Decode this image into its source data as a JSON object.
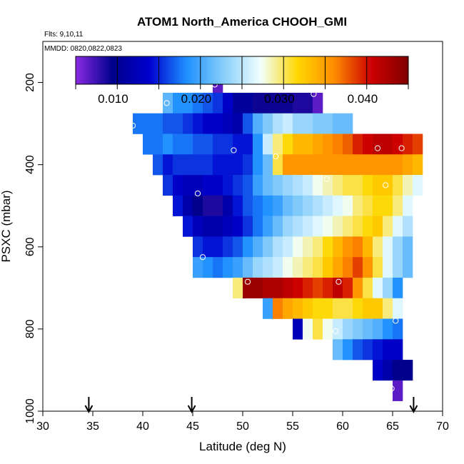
{
  "chart_data": {
    "type": "heatmap",
    "title": "ATOM1 North_America CHOOH_GMI",
    "subtitle_lines": [
      "Flts: 9,10,11",
      "MMDD: 0820,0822,0823"
    ],
    "xlabel": "Latitude (deg N)",
    "ylabel": "PSXC (mbar)",
    "xlim": [
      30,
      70
    ],
    "ylim": [
      1000,
      100
    ],
    "y_reversed": true,
    "x_ticks": [
      30,
      35,
      40,
      45,
      50,
      55,
      60,
      65,
      70
    ],
    "y_ticks": [
      200,
      400,
      600,
      800,
      1000
    ],
    "grid": false,
    "cell_width_deg": 1,
    "cell_height_mbar": 50,
    "colorbar": {
      "position": "top inside plot",
      "min": 0.0055,
      "max": 0.0455,
      "tick_values": [
        0.01,
        0.02,
        0.03,
        0.04
      ],
      "tick_labels": [
        "0.010",
        "0.020",
        "0.030",
        "0.040"
      ],
      "boundaries": [
        0.0055,
        0.0105,
        0.0155,
        0.0205,
        0.0255,
        0.0305,
        0.0355,
        0.0405,
        0.0455
      ],
      "colors": [
        "#8a2be2",
        "#00008b",
        "#0000cd",
        "#1e90ff",
        "#87cefa",
        "#f0ffff",
        "#ffd700",
        "#ff8c00",
        "#cc0000",
        "#800000"
      ]
    },
    "rows": [
      {
        "p": 200,
        "x0": 47,
        "values": [
          0.007
        ]
      },
      {
        "p": 250,
        "x0": 42,
        "values": [
          0.0215,
          0.019,
          0.019,
          0.018,
          0.017,
          0.016,
          0.014,
          0.011,
          0.011,
          0.0095,
          0.0095,
          0.0095,
          0.0095,
          0.009,
          0.009,
          0.007
        ]
      },
      {
        "p": 300,
        "x0": 39,
        "values": [
          0.018,
          0.018,
          0.018,
          0.017,
          0.017,
          0.016,
          0.015,
          0.014,
          0.014,
          0.013,
          0.012,
          0.017,
          0.021,
          0.023,
          0.025,
          0.026,
          0.024,
          0.024,
          0.023,
          0.023,
          0.022,
          0.022
        ]
      },
      {
        "p": 350,
        "x0": 40,
        "values": [
          0.018,
          0.018,
          0.019,
          0.018,
          0.018,
          0.017,
          0.017,
          0.016,
          0.016,
          0.015,
          0.015,
          0.019,
          0.026,
          0.03,
          0.032,
          0.034,
          0.034,
          0.035,
          0.036,
          0.037,
          0.038,
          0.04,
          0.041,
          0.042,
          0.042,
          0.041,
          0.04,
          0.039
        ]
      },
      {
        "p": 400,
        "x0": 41,
        "values": [
          0.017,
          0.015,
          0.016,
          0.016,
          0.016,
          0.016,
          0.015,
          0.015,
          0.015,
          0.016,
          0.019,
          0.022,
          0.031,
          0.036,
          0.036,
          0.036,
          0.036,
          0.036,
          0.036,
          0.036,
          0.036,
          0.036,
          0.036,
          0.036,
          0.036,
          0.035,
          0.034
        ]
      },
      {
        "p": 450,
        "x0": 42,
        "values": [
          0.016,
          0.014,
          0.013,
          0.013,
          0.014,
          0.014,
          0.015,
          0.016,
          0.017,
          0.02,
          0.022,
          0.023,
          0.024,
          0.025,
          0.026,
          0.028,
          0.029,
          0.03,
          0.031,
          0.031,
          0.032,
          0.033,
          0.033,
          0.031,
          0.029,
          0.027
        ]
      },
      {
        "p": 500,
        "x0": 43,
        "values": [
          0.015,
          0.012,
          0.01,
          0.009,
          0.009,
          0.012,
          0.015,
          0.017,
          0.018,
          0.019,
          0.02,
          0.022,
          0.023,
          0.024,
          0.025,
          0.026,
          0.027,
          0.028,
          0.03,
          0.031,
          0.032,
          0.032,
          0.03,
          0.027
        ]
      },
      {
        "p": 550,
        "x0": 44,
        "values": [
          0.015,
          0.013,
          0.012,
          0.012,
          0.013,
          0.014,
          0.016,
          0.018,
          0.02,
          0.022,
          0.024,
          0.025,
          0.026,
          0.027,
          0.028,
          0.029,
          0.03,
          0.031,
          0.032,
          0.033,
          0.03,
          0.027,
          0.025
        ]
      },
      {
        "p": 600,
        "x0": 45,
        "values": [
          0.016,
          0.015,
          0.015,
          0.016,
          0.017,
          0.019,
          0.021,
          0.023,
          0.025,
          0.026,
          0.028,
          0.029,
          0.03,
          0.032,
          0.034,
          0.036,
          0.037,
          0.034,
          0.03,
          0.027,
          0.024,
          0.022
        ]
      },
      {
        "p": 650,
        "x0": 45,
        "values": [
          0.02,
          0.019,
          0.018,
          0.019,
          0.02,
          0.022,
          0.024,
          0.025,
          0.026,
          0.028,
          0.029,
          0.03,
          0.031,
          0.033,
          0.035,
          0.037,
          0.039,
          0.036,
          0.031,
          0.027,
          0.024,
          0.022
        ]
      },
      {
        "p": 700,
        "x0": 49,
        "values": [
          0.03,
          0.044,
          0.044,
          0.043,
          0.043,
          0.042,
          0.041,
          0.04,
          0.039,
          0.04,
          0.042,
          0.04,
          0.036,
          0.031,
          0.027,
          0.024,
          0.019
        ]
      },
      {
        "p": 750,
        "x0": 52,
        "values": [
          0.02,
          0.037,
          0.035,
          0.034,
          0.033,
          0.032,
          0.032,
          0.031,
          0.031,
          0.032,
          0.033,
          0.033,
          0.03,
          0.027
        ]
      },
      {
        "p": 800,
        "x0": 55,
        "values": [
          0.013,
          0.028,
          0.031,
          0.028,
          0.026,
          0.024,
          0.023,
          0.022,
          0.021,
          0.019,
          0.018
        ]
      },
      {
        "p": 850,
        "x0": 59,
        "values": [
          0.022,
          0.019,
          0.017,
          0.016,
          0.015,
          0.014,
          0.014
        ]
      },
      {
        "p": 900,
        "x0": 63,
        "values": [
          0.014,
          0.012,
          0.01,
          0.01
        ]
      },
      {
        "p": 950,
        "x0": 65,
        "values": [
          0.007
        ]
      }
    ],
    "markers": [
      {
        "lat": 47.2,
        "p": 205
      },
      {
        "lat": 51.6,
        "p": 215
      },
      {
        "lat": 57.1,
        "p": 228
      },
      {
        "lat": 42.4,
        "p": 250
      },
      {
        "lat": 39.0,
        "p": 305
      },
      {
        "lat": 49.1,
        "p": 365
      },
      {
        "lat": 53.3,
        "p": 380
      },
      {
        "lat": 63.5,
        "p": 360
      },
      {
        "lat": 65.9,
        "p": 360
      },
      {
        "lat": 58.4,
        "p": 435
      },
      {
        "lat": 64.3,
        "p": 450
      },
      {
        "lat": 45.5,
        "p": 470
      },
      {
        "lat": 46.0,
        "p": 625
      },
      {
        "lat": 50.5,
        "p": 685
      },
      {
        "lat": 59.6,
        "p": 685
      },
      {
        "lat": 65.3,
        "p": 780
      },
      {
        "lat": 59.3,
        "p": 805
      },
      {
        "lat": 64.9,
        "p": 945
      }
    ],
    "arrows": [
      {
        "lat": 34.6
      },
      {
        "lat": 44.9
      },
      {
        "lat": 67.1
      }
    ]
  }
}
